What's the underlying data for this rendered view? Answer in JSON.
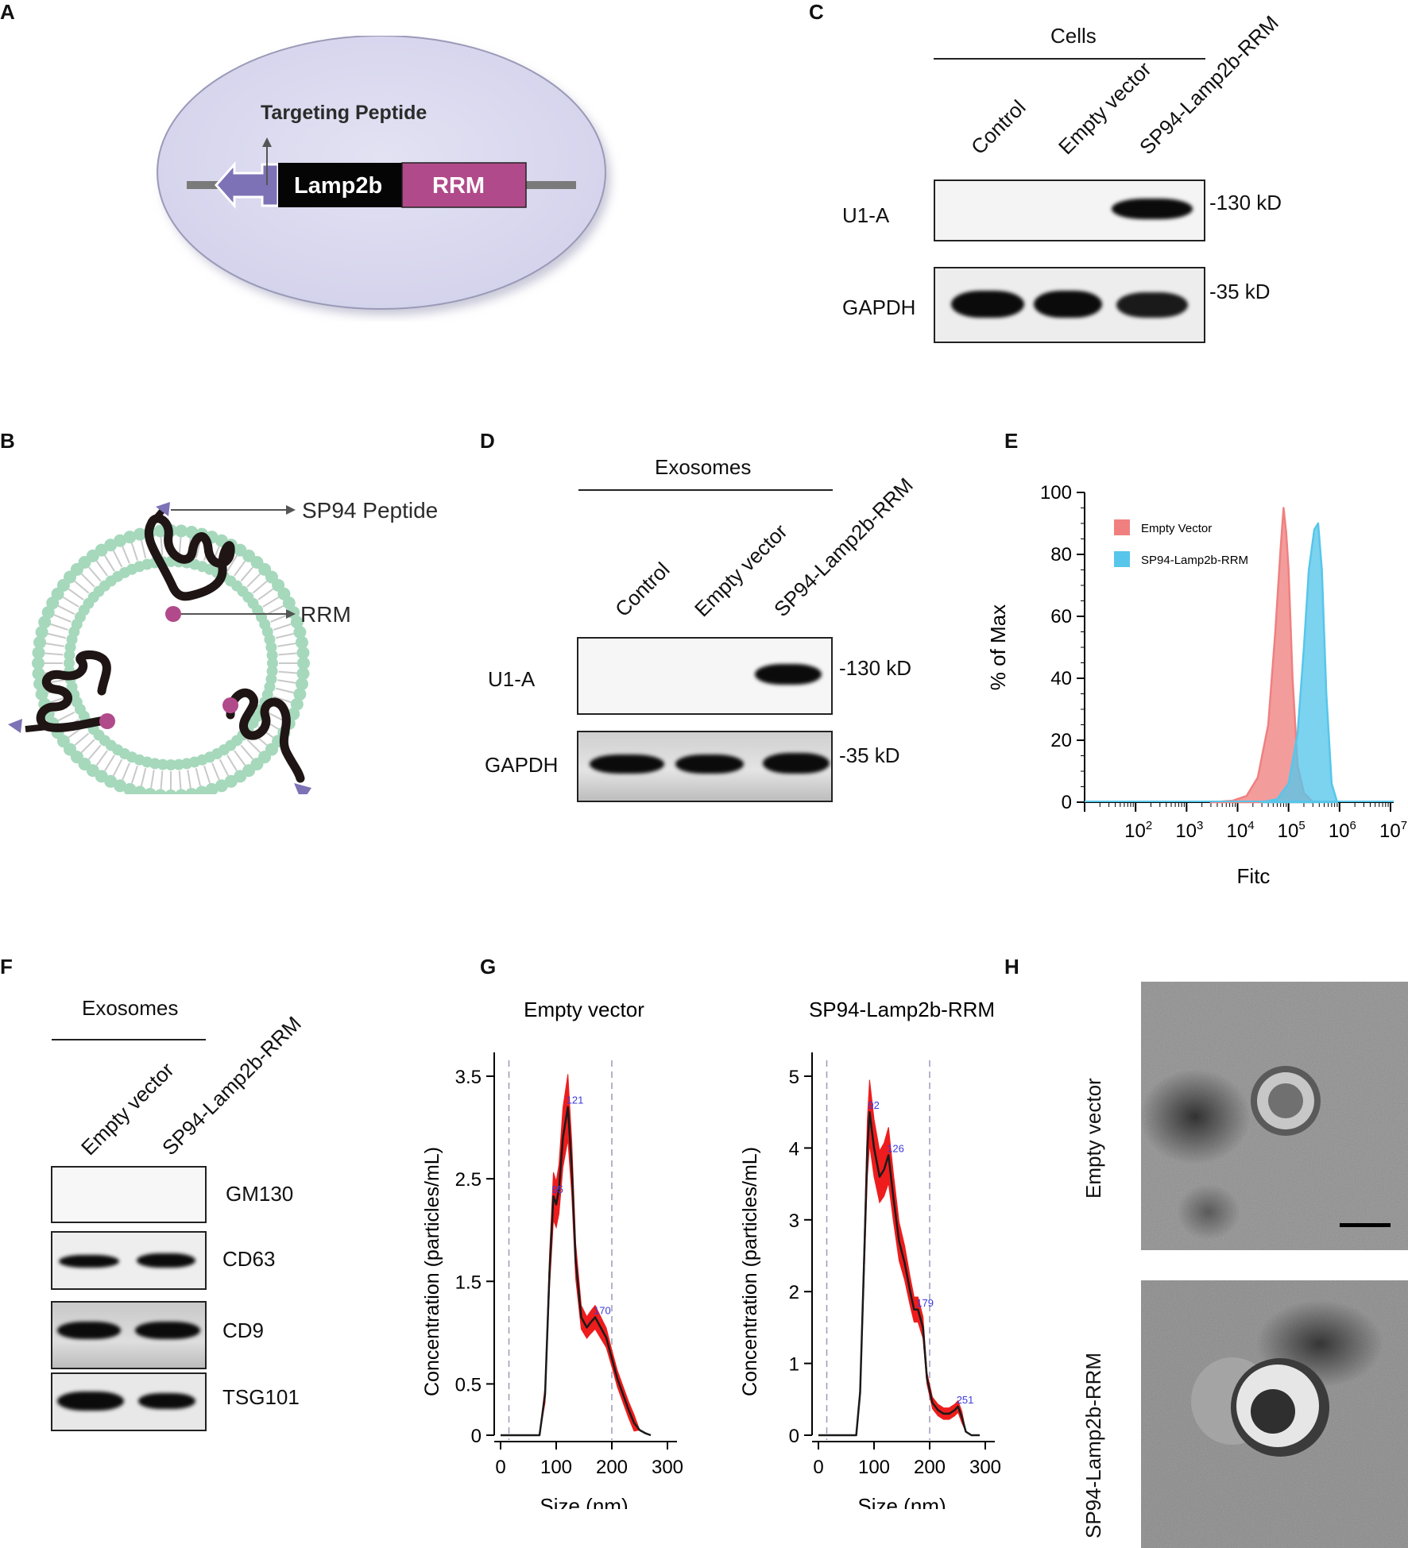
{
  "panels": {
    "A": "A",
    "B": "B",
    "C": "C",
    "D": "D",
    "E": "E",
    "F": "F",
    "G": "G",
    "H": "H"
  },
  "panelA": {
    "targeting_peptide": "Targeting Peptide",
    "lamp2b": "Lamp2b",
    "rrm": "RRM"
  },
  "panelB": {
    "sp94_peptide": "SP94 Peptide",
    "rrm": "RRM"
  },
  "panelC": {
    "group": "Cells",
    "lanes": [
      "Control",
      "Empty vector",
      "SP94-Lamp2b-RRM"
    ],
    "rows": [
      "U1-A",
      "GAPDH"
    ],
    "markers": [
      "-130 kD",
      "-35 kD"
    ]
  },
  "panelD": {
    "group": "Exosomes",
    "lanes": [
      "Control",
      "Empty vector",
      "SP94-Lamp2b-RRM"
    ],
    "rows": [
      "U1-A",
      "GAPDH"
    ],
    "markers": [
      "-130 kD",
      "-35 kD"
    ]
  },
  "panelF": {
    "group": "Exosomes",
    "lanes": [
      "Empty vector",
      "SP94-Lamp2b-RRM"
    ],
    "rows": [
      "GM130",
      "CD63",
      "CD9",
      "TSG101"
    ]
  },
  "panelH": {
    "rows": [
      "Empty vector",
      "SP94-Lamp2b-RRM"
    ]
  },
  "chart_data": [
    {
      "panel": "E",
      "type": "area",
      "xlabel": "Fitc",
      "ylabel": "% of Max",
      "x_scale": "log",
      "x_tick_labels": [
        "10^2",
        "10^3",
        "10^4",
        "10^5",
        "10^6",
        "10^7"
      ],
      "y_ticks": [
        0,
        20,
        40,
        60,
        80,
        100
      ],
      "ylim": [
        0,
        100
      ],
      "legend_position": "top-left",
      "series": [
        {
          "name": "Empty Vector",
          "color": "#f08080",
          "x": [
            3000,
            8000,
            15000,
            25000,
            40000,
            55000,
            70000,
            80000,
            90000,
            100000,
            120000,
            150000,
            200000,
            300000
          ],
          "y": [
            0,
            0.5,
            2,
            8,
            25,
            55,
            82,
            95,
            87,
            75,
            40,
            12,
            3,
            0
          ]
        },
        {
          "name": "SP94-Lamp2b-RRM",
          "color": "#57c6ea",
          "x": [
            30000,
            60000,
            100000,
            150000,
            200000,
            250000,
            320000,
            380000,
            450000,
            550000,
            700000,
            900000
          ],
          "y": [
            0,
            1,
            6,
            22,
            50,
            75,
            88,
            90,
            75,
            35,
            6,
            0
          ]
        }
      ]
    },
    {
      "panel": "G",
      "title": "Empty vector",
      "type": "line",
      "xlabel": "Size (nm)",
      "ylabel": "Concentration (particles/mL)",
      "xlim": [
        0,
        300
      ],
      "ylim": [
        0,
        3.5
      ],
      "x_ticks": [
        0,
        100,
        200,
        300
      ],
      "y_ticks": [
        0,
        0.5,
        1.5,
        2.5,
        3.5
      ],
      "dashed_lines_x": [
        15,
        200
      ],
      "peak_labels": [
        {
          "x": 95,
          "y": 2.33,
          "label": "95"
        },
        {
          "x": 121,
          "y": 3.2,
          "label": "121"
        },
        {
          "x": 170,
          "y": 1.15,
          "label": "170"
        }
      ],
      "x": [
        0,
        70,
        80,
        88,
        95,
        100,
        105,
        112,
        121,
        128,
        135,
        145,
        155,
        162,
        170,
        180,
        190,
        200,
        210,
        220,
        230,
        240,
        250,
        260,
        270
      ],
      "y": [
        0,
        0,
        0.4,
        1.6,
        2.33,
        2.25,
        2.4,
        2.9,
        3.2,
        2.6,
        1.7,
        1.15,
        1.05,
        1.1,
        1.15,
        1.05,
        0.95,
        0.75,
        0.55,
        0.4,
        0.25,
        0.12,
        0.05,
        0.02,
        0
      ]
    },
    {
      "panel": "G",
      "title": "SP94-Lamp2b-RRM",
      "type": "line",
      "xlabel": "Size (nm)",
      "ylabel": "Concentration (particles/mL)",
      "xlim": [
        0,
        300
      ],
      "ylim": [
        0,
        5
      ],
      "x_ticks": [
        0,
        100,
        200,
        300
      ],
      "y_ticks": [
        0,
        1,
        2,
        3,
        4,
        5
      ],
      "dashed_lines_x": [
        15,
        200
      ],
      "peak_labels": [
        {
          "x": 92,
          "y": 4.5,
          "label": "92"
        },
        {
          "x": 126,
          "y": 3.9,
          "label": "126"
        },
        {
          "x": 179,
          "y": 1.75,
          "label": "179"
        },
        {
          "x": 251,
          "y": 0.4,
          "label": "251"
        }
      ],
      "x": [
        0,
        68,
        75,
        82,
        88,
        92,
        100,
        110,
        118,
        126,
        135,
        145,
        155,
        165,
        172,
        179,
        188,
        195,
        205,
        215,
        225,
        235,
        245,
        251,
        258,
        265,
        275,
        290
      ],
      "y": [
        0,
        0,
        0.6,
        2.4,
        4.0,
        4.5,
        4.0,
        3.6,
        3.7,
        3.9,
        3.3,
        2.7,
        2.4,
        2.0,
        1.75,
        1.75,
        1.5,
        0.8,
        0.45,
        0.35,
        0.3,
        0.3,
        0.35,
        0.4,
        0.25,
        0.05,
        0,
        0
      ]
    }
  ]
}
